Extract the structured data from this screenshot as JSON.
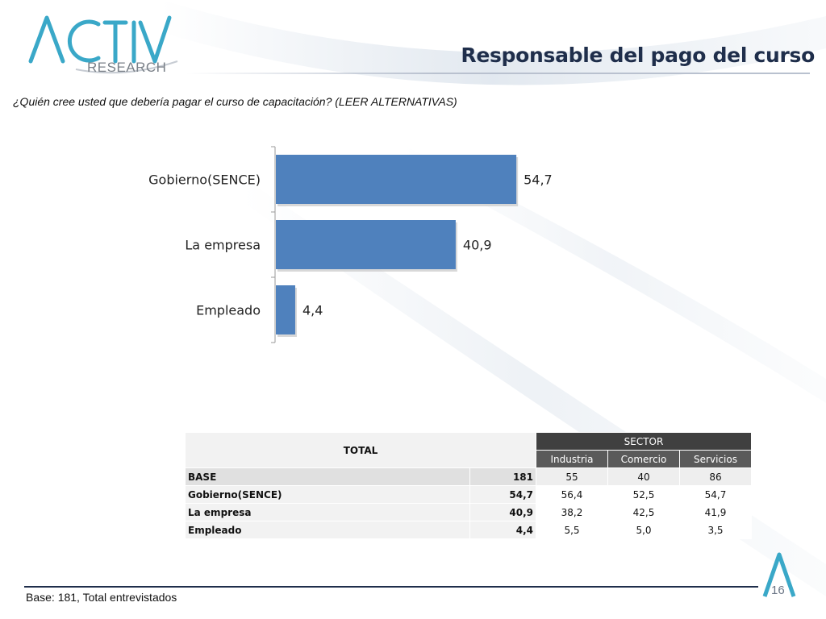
{
  "brand": {
    "logo_name": "ACTIVA",
    "logo_subtitle": "RESEARCH",
    "accent_color": "#3aa8c8",
    "title_color": "#1f2e4b",
    "bar_color": "#4f81bd"
  },
  "slide": {
    "title": "Responsable del pago del curso",
    "question": "¿Quién cree usted que debería pagar el curso de capacitación? (LEER ALTERNATIVAS)",
    "footer_note": "Base: 181, Total entrevistados",
    "page_number": "16"
  },
  "chart_data": {
    "type": "bar",
    "orientation": "horizontal",
    "categories": [
      "Gobierno(SENCE)",
      "La empresa",
      "Empleado"
    ],
    "values": [
      54.7,
      40.9,
      4.4
    ],
    "value_labels": [
      "54,7",
      "40,9",
      "4,4"
    ],
    "xlim": [
      0,
      60
    ],
    "grid": false,
    "legend": "none"
  },
  "table": {
    "total_header": "TOTAL",
    "group_header": "SECTOR",
    "sub_headers": [
      "Industria",
      "Comercio",
      "Servicios"
    ],
    "rows": [
      {
        "label": "BASE",
        "total": "181",
        "cells": [
          "55",
          "40",
          "86"
        ]
      },
      {
        "label": "Gobierno(SENCE)",
        "total": "54,7",
        "cells": [
          "56,4",
          "52,5",
          "54,7"
        ]
      },
      {
        "label": "La empresa",
        "total": "40,9",
        "cells": [
          "38,2",
          "42,5",
          "41,9"
        ]
      },
      {
        "label": "Empleado",
        "total": "4,4",
        "cells": [
          "5,5",
          "5,0",
          "3,5"
        ]
      }
    ]
  }
}
